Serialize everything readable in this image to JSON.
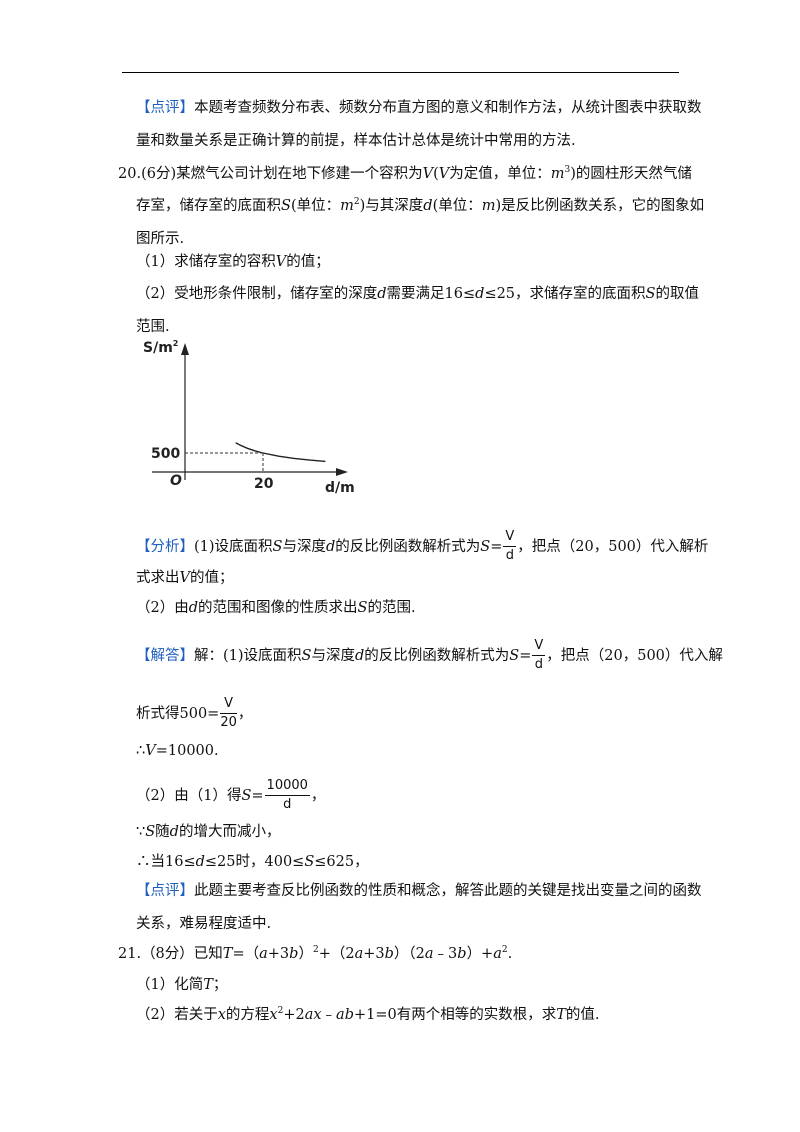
{
  "review_prev": {
    "tag": "【点评】",
    "line1": "本题考查频数分布表、频数分布直方图的意义和制作方法，从统计图表中获取数",
    "line2": "量和数量关系是正确计算的前提，样本估计总体是统计中常用的方法."
  },
  "q20": {
    "number": "20.",
    "score": "(6分)",
    "stem_l1_a": "某燃气公司计划在地下修建一个容积为",
    "v1": "V",
    "paren_open": "(",
    "v2": "V",
    "stem_l1_b": "为定值，单位：",
    "unit_m3_base": "m",
    "unit_m3_exp": "3",
    "stem_l1_c": ")的圆柱形天然气储",
    "stem_l2_a": "存室，储存室的底面积",
    "s1": "S",
    "stem_l2_b": "(单位：",
    "unit_m2_base": "m",
    "unit_m2_exp": "2",
    "stem_l2_c": ")与其深度",
    "d1": "d",
    "stem_l2_d": "(单位：",
    "unit_m": "m",
    "stem_l2_e": ")是反比例函数关系，它的图象如",
    "stem_l3": "图所示.",
    "sub1_a": "（1）求储存室的容积",
    "sub1_v": "V",
    "sub1_b": "的值；",
    "sub2_a": "（2）受地形条件限制，储存室的深度",
    "sub2_d": "d",
    "sub2_b": "需要满足16≤",
    "sub2_d2": "d",
    "sub2_c": "≤25，求储存室的底面积",
    "sub2_s": "S",
    "sub2_d3": "的取值",
    "sub2_l2": "范围."
  },
  "chart_data": {
    "type": "line",
    "function": "S = 10000 / d",
    "x": [
      13,
      14,
      16,
      18,
      20,
      24,
      28,
      32,
      36
    ],
    "y": [
      769,
      714,
      625,
      556,
      500,
      417,
      357,
      313,
      278
    ],
    "ylabel": "S/m",
    "ylabel_exp": "2",
    "xlabel": "d/m",
    "origin_label": "O",
    "y_tick": "500",
    "x_tick": "20",
    "marked_point": [
      20,
      500
    ],
    "grid": false
  },
  "analysis": {
    "tag": "【分析】",
    "l1_a": "(1)设底面积",
    "s": "S",
    "l1_b": "与深度",
    "d": "d",
    "l1_c": "的反比例函数解析式为",
    "s2": "S",
    "eq": "=",
    "frac_num": "V",
    "frac_den": "d",
    "l1_d": "，把点（20，500）代入解析",
    "l2_a": "式求出",
    "v": "V",
    "l2_b": "的值；",
    "l3_a": "（2）由",
    "d2": "d",
    "l3_b": "的范围和图像的性质求出",
    "s3": "S",
    "l3_c": "的范围."
  },
  "answer": {
    "tag": "【解答】",
    "l1_a": "解：(1)设底面积",
    "s": "S",
    "l1_b": "与深度",
    "d": "d",
    "l1_c": "的反比例函数解析式为",
    "s2": "S",
    "eq": "=",
    "frac_num": "V",
    "frac_den": "d",
    "l1_d": "，把点（20，500）代入解",
    "l2_a": "析式得500=",
    "f2_num": "V",
    "f2_den": "20",
    "l2_b": "，",
    "l3_a": "∴",
    "v": "V",
    "l3_b": "=10000.",
    "l4_a": "（2）由（1）得",
    "s3": "S",
    "eq2": "=",
    "f3_num": "10000",
    "f3_den": "d",
    "l4_b": "，",
    "l5_a": "∵",
    "s4": "S",
    "l5_b": "随",
    "d2": "d",
    "l5_c": "的增大而减小，",
    "l6_a": "∴当16≤",
    "d3": "d",
    "l6_b": "≤25时，400≤",
    "s5": "S",
    "l6_c": "≤625，"
  },
  "review": {
    "tag": "【点评】",
    "line1": "此题主要考查反比例函数的性质和概念，解答此题的关键是找出变量之间的函数",
    "line2": "关系，难易程度适中."
  },
  "q21": {
    "number": "21.",
    "l1_a": "（8分）已知",
    "t": "T",
    "l1_b": "=（",
    "a1": "a",
    "l1_c": "+3",
    "b1": "b",
    "l1_d": "）",
    "exp1": "2",
    "l1_e": "+（2",
    "a2": "a",
    "l1_f": "+3",
    "b2": "b",
    "l1_g": "）（2",
    "a3": "a",
    "l1_h": "﹣3",
    "b3": "b",
    "l1_i": "）+",
    "a4": "a",
    "exp2": "2",
    "l1_j": ".",
    "sub1_a": "（1）化简",
    "sub1_t": "T",
    "sub1_b": "；",
    "sub2_a": "（2）若关于",
    "sub2_x": "x",
    "sub2_b": "的方程",
    "sub2_x2": "x",
    "sub2_exp": "2",
    "sub2_c": "+2",
    "sub2_ax": "ax",
    "sub2_d": "﹣",
    "sub2_ab": "ab",
    "sub2_e": "+1=0有两个相等的实数根，求",
    "sub2_t": "T",
    "sub2_f": "的值."
  }
}
